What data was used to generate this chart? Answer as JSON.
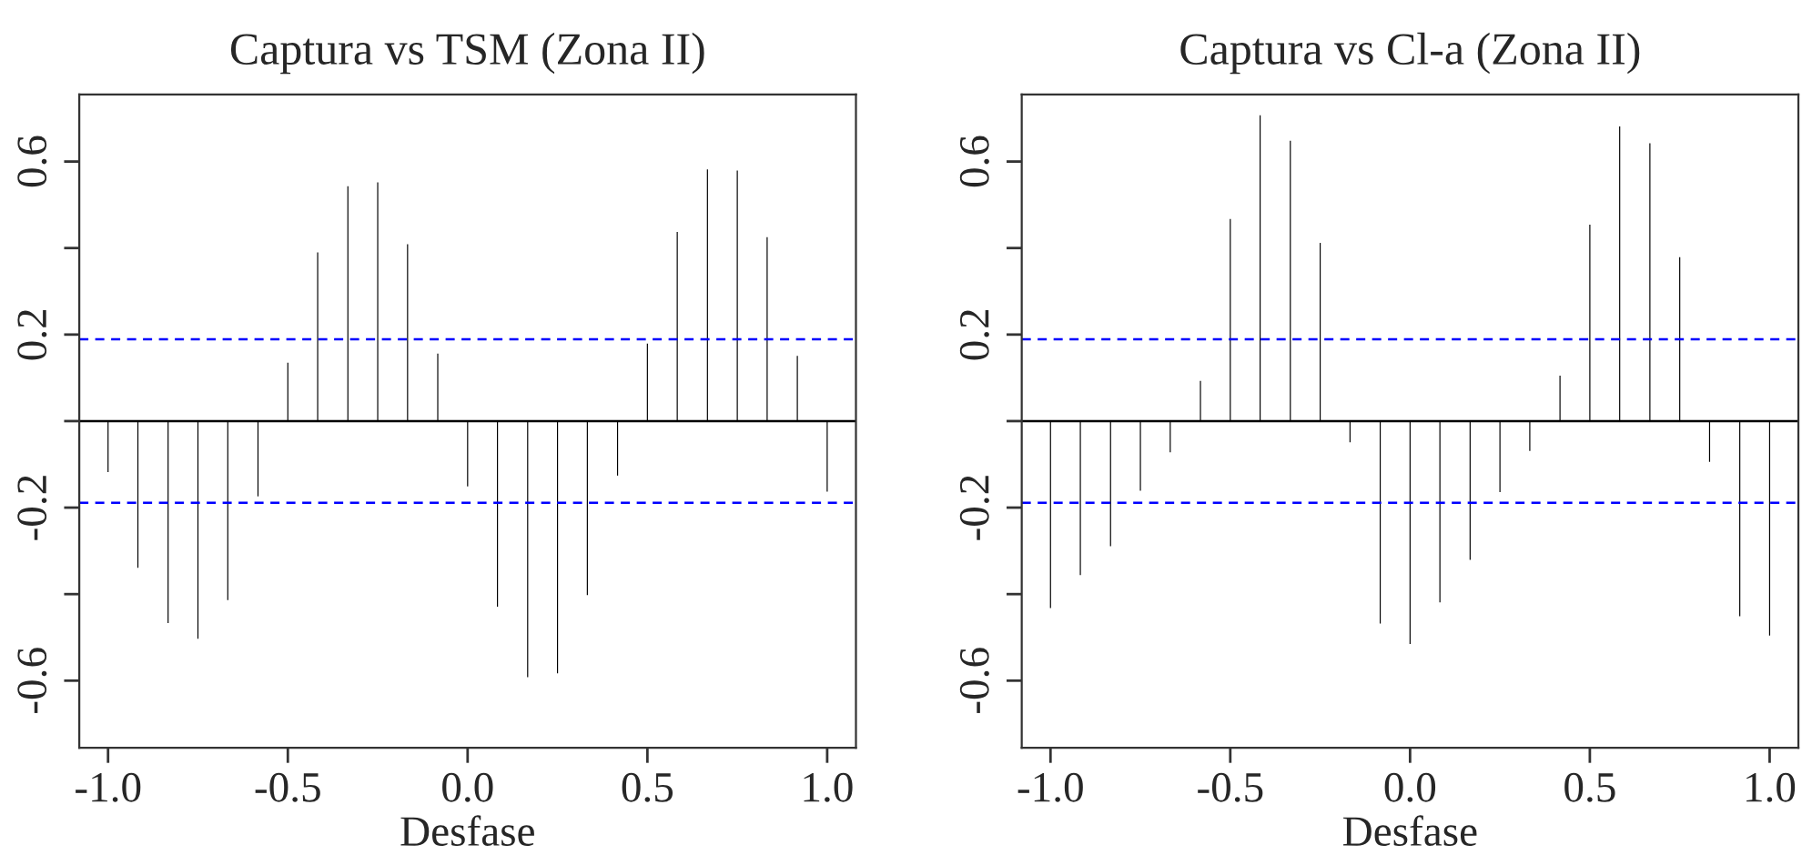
{
  "chart_data": [
    {
      "type": "bar",
      "title": "Captura vs TSM (Zona II)",
      "xlabel": "Desfase",
      "x": [
        -1.0,
        -0.917,
        -0.833,
        -0.75,
        -0.667,
        -0.583,
        -0.5,
        -0.417,
        -0.333,
        -0.25,
        -0.167,
        -0.083,
        0.0,
        0.083,
        0.167,
        0.25,
        0.333,
        0.417,
        0.5,
        0.583,
        0.667,
        0.75,
        0.833,
        0.917,
        1.0
      ],
      "values": [
        -0.118,
        -0.339,
        -0.467,
        -0.503,
        -0.414,
        -0.174,
        0.135,
        0.39,
        0.543,
        0.552,
        0.409,
        0.156,
        -0.151,
        -0.429,
        -0.592,
        -0.583,
        -0.402,
        -0.126,
        0.179,
        0.437,
        0.582,
        0.579,
        0.425,
        0.151,
        -0.163
      ],
      "color": "#000000",
      "xlim": [
        -1.08,
        1.08
      ],
      "xticks": [
        {
          "value": -1.0,
          "label": "-1.0"
        },
        {
          "value": -0.5,
          "label": "-0.5"
        },
        {
          "value": 0.0,
          "label": "0.0"
        },
        {
          "value": 0.5,
          "label": "0.5"
        },
        {
          "value": 1.0,
          "label": "1.0"
        }
      ],
      "ylim": [
        -0.755,
        0.755
      ],
      "yticks": [
        {
          "value": -0.6,
          "label": "-0.6"
        },
        {
          "value": -0.4,
          "label": null
        },
        {
          "value": -0.2,
          "label": "-0.2"
        },
        {
          "value": 0.0,
          "label": null
        },
        {
          "value": 0.2,
          "label": "0.2"
        },
        {
          "value": 0.4,
          "label": null
        },
        {
          "value": 0.6,
          "label": "0.6"
        }
      ],
      "ref_lines": [
        {
          "axis": "y",
          "value": 0,
          "color": "#000000",
          "line_style": "solid"
        },
        {
          "axis": "y",
          "value": 0.189,
          "color": "#0000ff",
          "line_style": "dashed"
        },
        {
          "axis": "y",
          "value": -0.189,
          "color": "#0000ff",
          "line_style": "dashed"
        }
      ],
      "grid": false,
      "legend": false
    },
    {
      "type": "bar",
      "title": "Captura vs Cl-a (Zona II)",
      "xlabel": "Desfase",
      "x": [
        -1.0,
        -0.917,
        -0.833,
        -0.75,
        -0.667,
        -0.583,
        -0.5,
        -0.417,
        -0.333,
        -0.25,
        -0.167,
        -0.083,
        0.0,
        0.083,
        0.167,
        0.25,
        0.333,
        0.417,
        0.5,
        0.583,
        0.667,
        0.75,
        0.833,
        0.917,
        1.0
      ],
      "values": [
        -0.432,
        -0.356,
        -0.289,
        -0.161,
        -0.072,
        0.093,
        0.467,
        0.707,
        0.648,
        0.412,
        -0.049,
        -0.468,
        -0.515,
        -0.419,
        -0.321,
        -0.164,
        -0.069,
        0.105,
        0.454,
        0.681,
        0.642,
        0.379,
        -0.094,
        -0.451,
        -0.496
      ],
      "color": "#000000",
      "xlim": [
        -1.08,
        1.08
      ],
      "xticks": [
        {
          "value": -1.0,
          "label": "-1.0"
        },
        {
          "value": -0.5,
          "label": "-0.5"
        },
        {
          "value": 0.0,
          "label": "0.0"
        },
        {
          "value": 0.5,
          "label": "0.5"
        },
        {
          "value": 1.0,
          "label": "1.0"
        }
      ],
      "ylim": [
        -0.755,
        0.755
      ],
      "yticks": [
        {
          "value": -0.6,
          "label": "-0.6"
        },
        {
          "value": -0.4,
          "label": null
        },
        {
          "value": -0.2,
          "label": "-0.2"
        },
        {
          "value": 0.0,
          "label": null
        },
        {
          "value": 0.2,
          "label": "0.2"
        },
        {
          "value": 0.4,
          "label": null
        },
        {
          "value": 0.6,
          "label": "0.6"
        }
      ],
      "ref_lines": [
        {
          "axis": "y",
          "value": 0,
          "color": "#000000",
          "line_style": "solid"
        },
        {
          "axis": "y",
          "value": 0.189,
          "color": "#0000ff",
          "line_style": "dashed"
        },
        {
          "axis": "y",
          "value": -0.189,
          "color": "#0000ff",
          "line_style": "dashed"
        }
      ],
      "grid": false,
      "legend": false
    }
  ]
}
